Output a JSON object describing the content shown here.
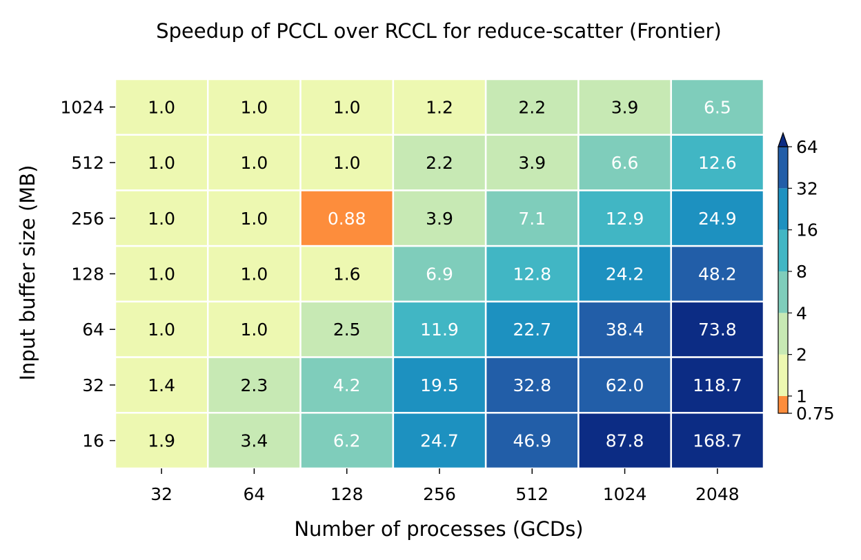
{
  "chart_data": {
    "type": "heatmap",
    "title": "Speedup of PCCL over RCCL for reduce-scatter (Frontier)",
    "xlabel": "Number of processes (GCDs)",
    "ylabel": "Input buffer size (MB)",
    "x_categories": [
      "32",
      "64",
      "128",
      "256",
      "512",
      "1024",
      "2048"
    ],
    "y_categories": [
      "1024",
      "512",
      "256",
      "128",
      "64",
      "32",
      "16"
    ],
    "values": [
      [
        "1.0",
        "1.0",
        "1.0",
        "1.2",
        "2.2",
        "3.9",
        "6.5"
      ],
      [
        "1.0",
        "1.0",
        "1.0",
        "2.2",
        "3.9",
        "6.6",
        "12.6"
      ],
      [
        "1.0",
        "1.0",
        "0.88",
        "3.9",
        "7.1",
        "12.9",
        "24.9"
      ],
      [
        "1.0",
        "1.0",
        "1.6",
        "6.9",
        "12.8",
        "24.2",
        "48.2"
      ],
      [
        "1.0",
        "1.0",
        "2.5",
        "11.9",
        "22.7",
        "38.4",
        "73.8"
      ],
      [
        "1.4",
        "2.3",
        "4.2",
        "19.5",
        "32.8",
        "62.0",
        "118.7"
      ],
      [
        "1.9",
        "3.4",
        "6.2",
        "24.7",
        "46.9",
        "87.8",
        "168.7"
      ]
    ],
    "colorbar": {
      "scale": "log2",
      "extend": "max",
      "ticks": [
        "0.75",
        "1",
        "2",
        "4",
        "8",
        "16",
        "32",
        "64"
      ],
      "bins": [
        {
          "min": 0.75,
          "max": 1,
          "color": "#fd8d3c"
        },
        {
          "min": 1,
          "max": 2,
          "color": "#edf8b1"
        },
        {
          "min": 2,
          "max": 4,
          "color": "#c7e9b4"
        },
        {
          "min": 4,
          "max": 8,
          "color": "#7fcdbb"
        },
        {
          "min": 8,
          "max": 16,
          "color": "#41b6c4"
        },
        {
          "min": 16,
          "max": 32,
          "color": "#1d91c0"
        },
        {
          "min": 32,
          "max": 64,
          "color": "#225ea8"
        },
        {
          "min": 64,
          "max": null,
          "color": "#0c2c84"
        }
      ]
    },
    "dark_text_color": "#000000",
    "light_text_color": "#ffffff"
  }
}
